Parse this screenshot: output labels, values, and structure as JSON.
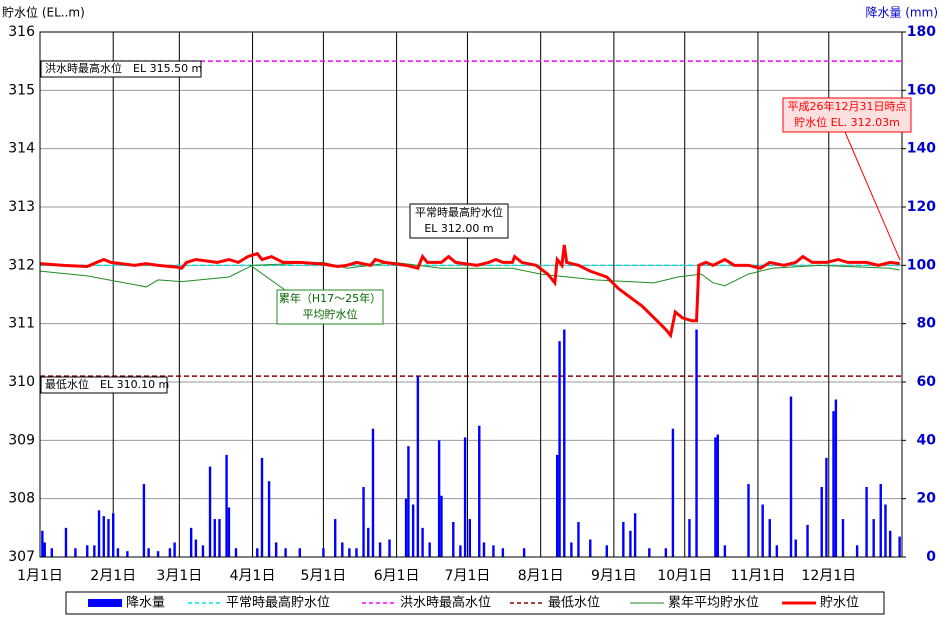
{
  "chart_data": {
    "type": "bar-line",
    "y_label": "貯水位 (EL..m)",
    "y2_label": "降水量 (mm)",
    "xlim": [
      0,
      365
    ],
    "xticks": [
      {
        "value": 0,
        "label": "1月1日"
      },
      {
        "value": 31,
        "label": "2月1日"
      },
      {
        "value": 59,
        "label": "3月1日"
      },
      {
        "value": 90,
        "label": "4月1日"
      },
      {
        "value": 120,
        "label": "5月1日"
      },
      {
        "value": 151,
        "label": "6月1日"
      },
      {
        "value": 181,
        "label": "7月1日"
      },
      {
        "value": 212,
        "label": "8月1日"
      },
      {
        "value": 243,
        "label": "9月1日"
      },
      {
        "value": 273,
        "label": "10月1日"
      },
      {
        "value": 304,
        "label": "11月1日"
      },
      {
        "value": 334,
        "label": "12月1日"
      }
    ],
    "ylim": [
      307,
      316
    ],
    "yticks": [
      307,
      308,
      309,
      310,
      311,
      312,
      313,
      314,
      315,
      316
    ],
    "y2lim": [
      0,
      180
    ],
    "y2ticks": [
      0,
      20,
      40,
      60,
      80,
      100,
      120,
      140,
      160,
      180
    ],
    "grid": true,
    "reference_lines": [
      {
        "name": "平常時最高貯水位",
        "value": 312.0,
        "color": "#00e0e0"
      },
      {
        "name": "洪水時最高水位",
        "value": 315.5,
        "color": "#ff00ff"
      },
      {
        "name": "最低水位",
        "value": 310.1,
        "color": "#8b0000"
      }
    ],
    "series": [
      {
        "name": "降水量",
        "type": "bar",
        "axis": "y2",
        "color": "#0000ff",
        "x": [
          1,
          2,
          5,
          11,
          15,
          20,
          23,
          25,
          27,
          29,
          31,
          33,
          37,
          44,
          46,
          50,
          55,
          57,
          64,
          66,
          69,
          72,
          74,
          76,
          79,
          80,
          83,
          92,
          94,
          97,
          100,
          104,
          110,
          120,
          125,
          128,
          131,
          134,
          137,
          139,
          141,
          144,
          148,
          155,
          156,
          158,
          160,
          162,
          165,
          169,
          170,
          175,
          178,
          180,
          182,
          186,
          188,
          192,
          196,
          205,
          219,
          220,
          222,
          225,
          228,
          233,
          240,
          247,
          250,
          252,
          258,
          265,
          268,
          275,
          278,
          286,
          287,
          290,
          300,
          306,
          309,
          312,
          318,
          320,
          325,
          331,
          333,
          336,
          337,
          340,
          346,
          350,
          353,
          356,
          358,
          360,
          364
        ],
        "values": [
          9,
          5,
          3,
          10,
          3,
          4,
          4,
          16,
          14,
          13,
          15,
          3,
          2,
          25,
          3,
          2,
          3,
          5,
          10,
          6,
          4,
          31,
          13,
          13,
          35,
          17,
          3,
          3,
          34,
          26,
          5,
          3,
          3,
          3,
          13,
          5,
          3,
          3,
          24,
          10,
          44,
          5,
          6,
          20,
          38,
          18,
          62,
          10,
          5,
          40,
          21,
          12,
          4,
          41,
          13,
          45,
          5,
          4,
          3,
          3,
          35,
          74,
          78,
          5,
          12,
          6,
          4,
          12,
          9,
          15,
          3,
          3,
          44,
          13,
          78,
          41,
          42,
          4,
          25,
          18,
          13,
          4,
          55,
          6,
          11,
          24,
          34,
          50,
          54,
          13,
          4,
          24,
          13,
          25,
          18,
          9,
          7
        ]
      },
      {
        "name": "累年平均貯水位",
        "type": "line",
        "color": "#228b22",
        "x": [
          0,
          20,
          45,
          50,
          60,
          80,
          90,
          120,
          130,
          150,
          170,
          200,
          212,
          235,
          260,
          270,
          280,
          285,
          290,
          300,
          310,
          330,
          360,
          364
        ],
        "values": [
          311.9,
          311.82,
          311.63,
          311.75,
          311.72,
          311.8,
          312.0,
          312.05,
          311.95,
          312.05,
          311.95,
          311.95,
          311.85,
          311.75,
          311.7,
          311.8,
          311.85,
          311.7,
          311.65,
          311.85,
          311.95,
          312.0,
          311.95,
          311.92
        ]
      },
      {
        "name": "貯水位",
        "type": "line",
        "color": "#ff0000",
        "x": [
          0,
          10,
          20,
          24,
          27,
          30,
          40,
          45,
          50,
          58,
          60,
          62,
          66,
          75,
          80,
          84,
          88,
          92,
          94,
          98,
          103,
          110,
          120,
          126,
          130,
          134,
          140,
          142,
          146,
          155,
          160,
          162,
          164,
          170,
          173,
          176,
          185,
          190,
          193,
          196,
          200,
          201,
          204,
          210,
          215,
          218,
          219,
          221,
          222,
          223,
          228,
          233,
          240,
          245,
          250,
          255,
          260,
          265,
          267,
          269,
          272,
          276,
          278,
          279,
          282,
          285,
          290,
          294,
          300,
          305,
          309,
          315,
          320,
          323,
          327,
          333,
          338,
          342,
          350,
          355,
          360,
          364
        ],
        "values": [
          312.03,
          312.0,
          311.98,
          312.05,
          312.1,
          312.05,
          312.0,
          312.03,
          312.0,
          311.97,
          311.95,
          312.05,
          312.1,
          312.05,
          312.1,
          312.05,
          312.15,
          312.2,
          312.1,
          312.15,
          312.05,
          312.05,
          312.02,
          311.98,
          312.0,
          312.05,
          312.0,
          312.1,
          312.05,
          312.0,
          311.95,
          312.15,
          312.05,
          312.05,
          312.15,
          312.05,
          312.0,
          312.05,
          312.1,
          312.05,
          312.05,
          312.15,
          312.05,
          312.0,
          311.85,
          311.7,
          312.1,
          312.0,
          312.35,
          312.05,
          312.0,
          311.9,
          311.8,
          311.6,
          311.45,
          311.3,
          311.1,
          310.9,
          310.8,
          311.2,
          311.1,
          311.05,
          311.05,
          312.0,
          312.05,
          312.0,
          312.1,
          312.0,
          312.0,
          311.95,
          312.05,
          312.0,
          312.05,
          312.15,
          312.05,
          312.05,
          312.1,
          312.05,
          312.05,
          312.0,
          312.05,
          312.03
        ]
      }
    ],
    "annotations": {
      "flood": "洪水時最高水位　EL 315.50 m",
      "normal": [
        "平常時最高貯水位",
        "EL 312.00 m"
      ],
      "low": "最低水位　EL 310.10 m",
      "average": [
        "累年（H17～25年）",
        "平均貯水位"
      ],
      "current": [
        "平成26年12月31日時点",
        "貯水位 EL. 312.03m"
      ]
    }
  }
}
